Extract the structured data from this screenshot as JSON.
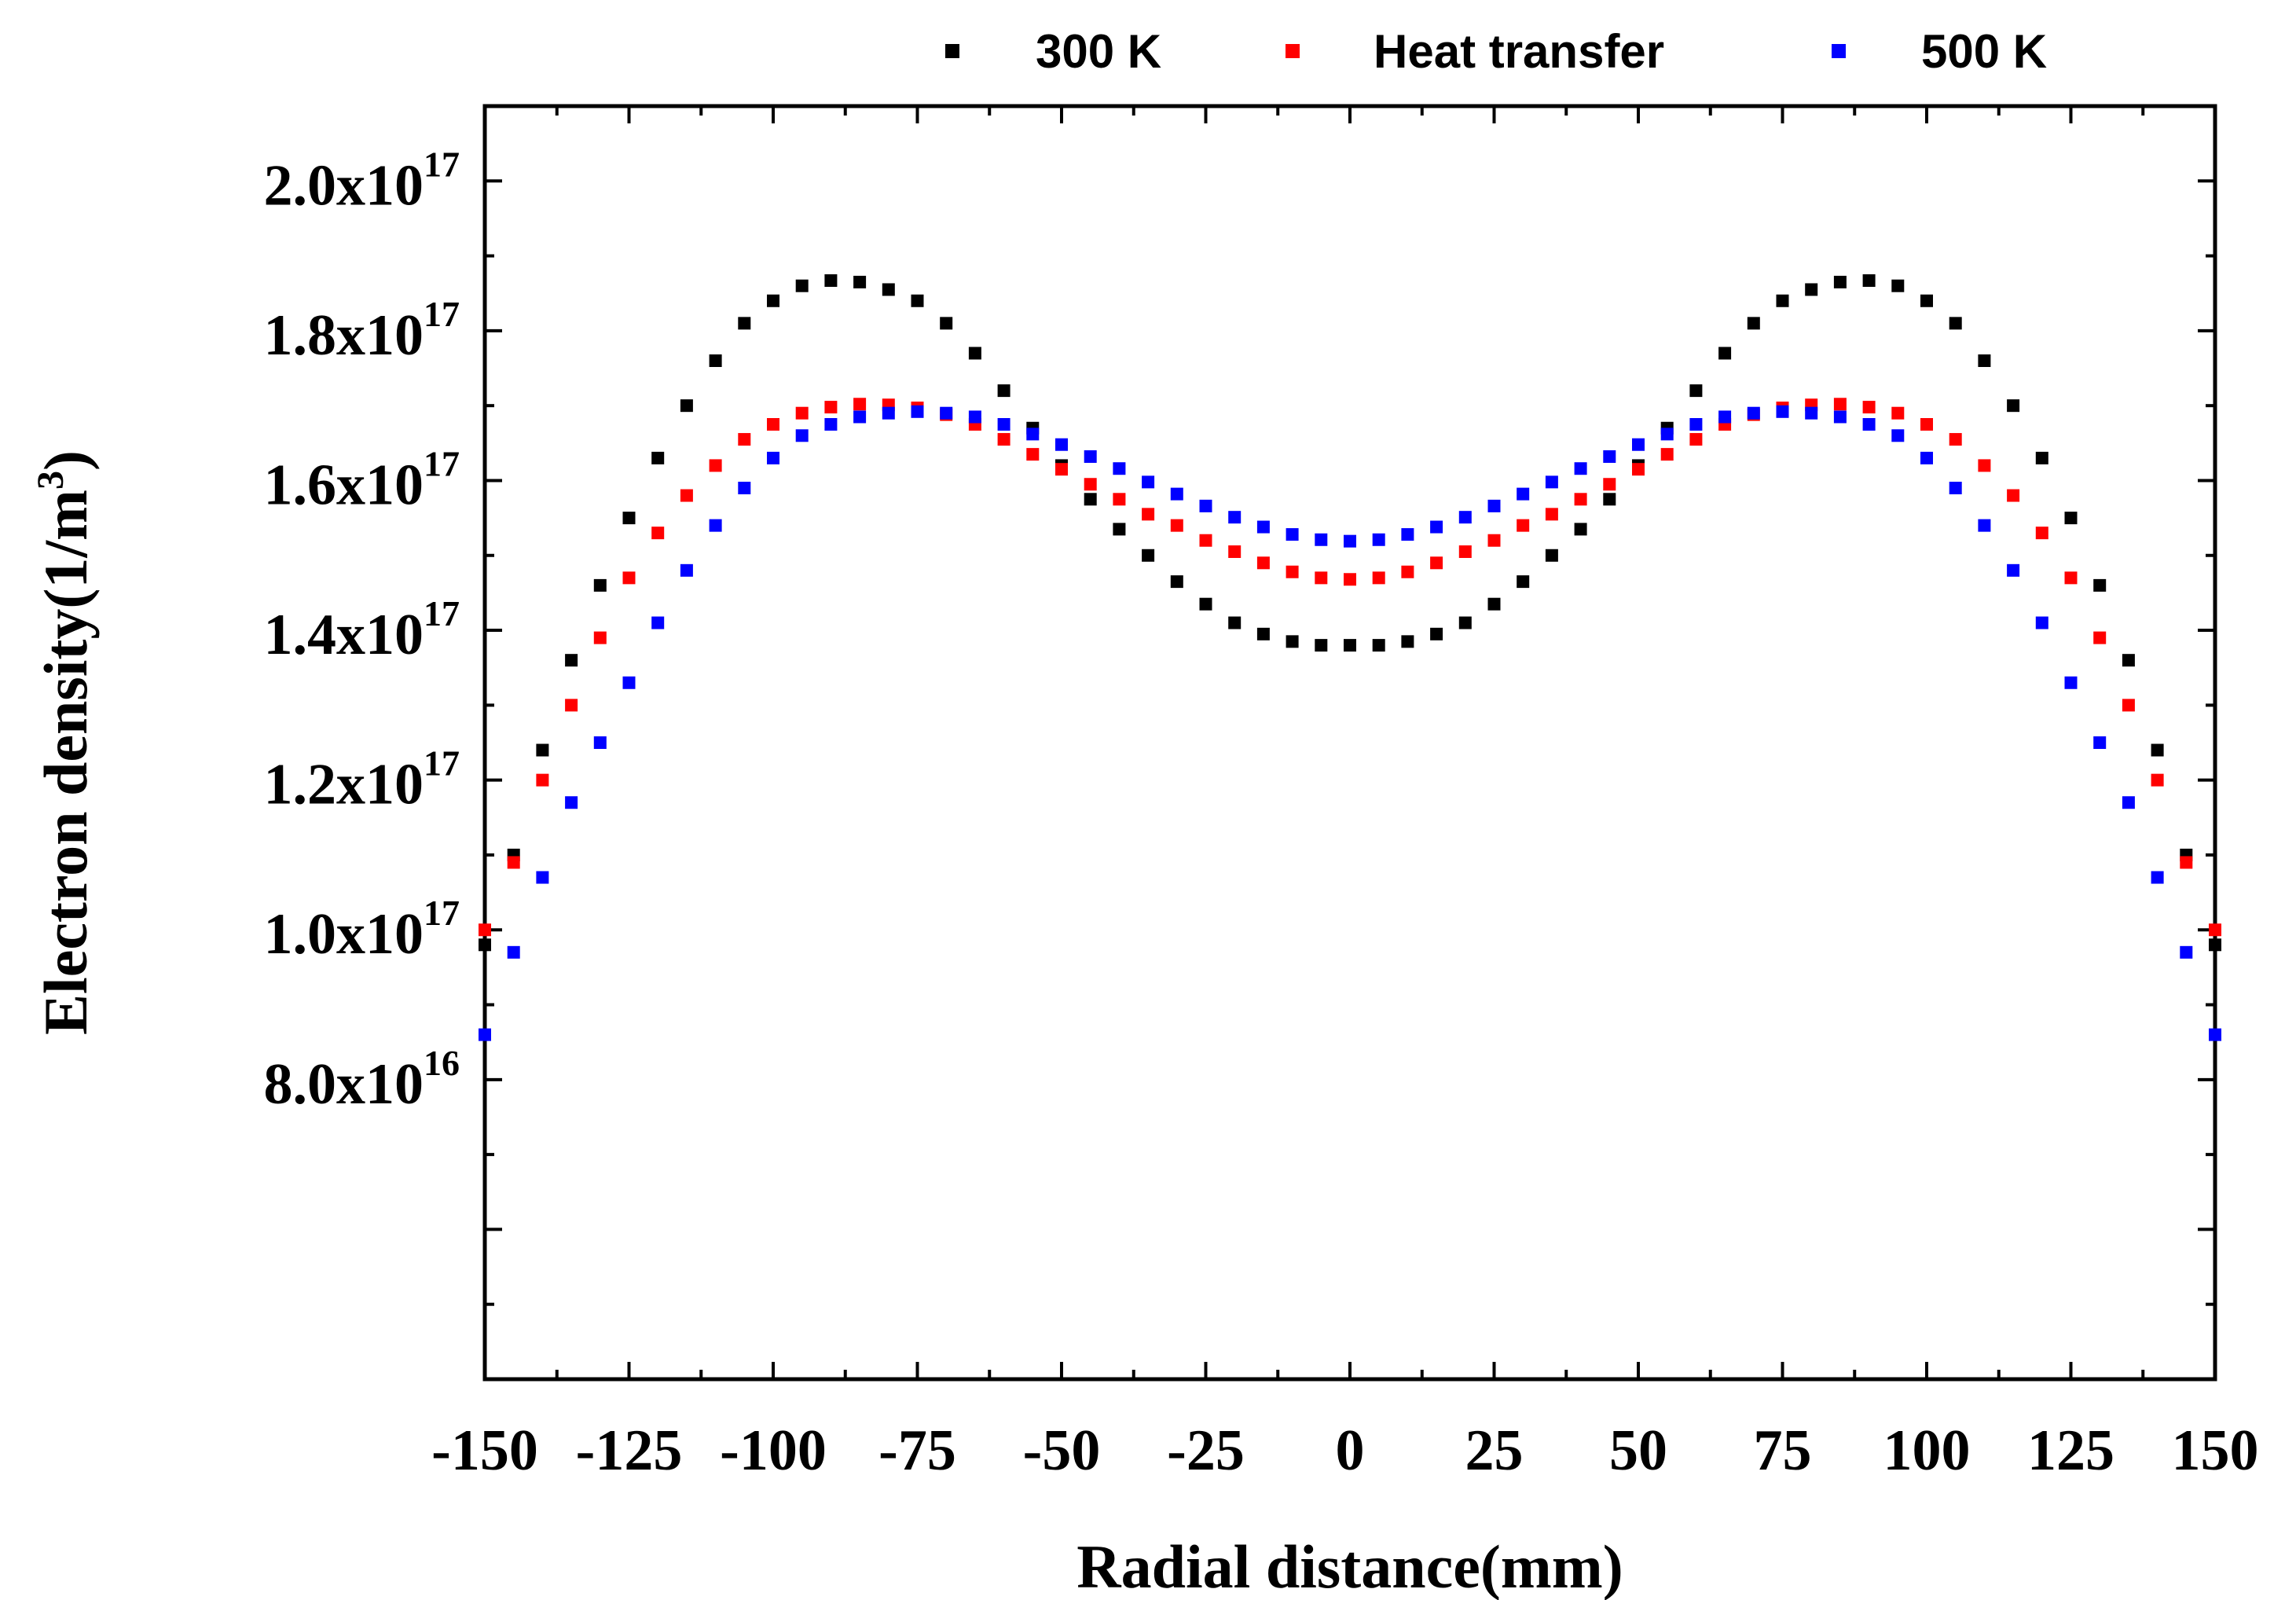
{
  "chart_data": {
    "type": "scatter",
    "title": "",
    "xlabel": "Radial distance(mm)",
    "ylabel": "Electron density(1/m",
    "ylabel_sup": "3",
    "ylabel_close": ")",
    "xlim": [
      -150,
      150
    ],
    "ylim": [
      4e+16,
      2.1e+17
    ],
    "xticks": [
      -150,
      -125,
      -100,
      -75,
      -50,
      -25,
      0,
      25,
      50,
      75,
      100,
      125,
      150
    ],
    "xtick_labels": [
      "-150",
      "-125",
      "-100",
      "-75",
      "-50",
      "-25",
      "0",
      "25",
      "50",
      "75",
      "100",
      "125",
      "150"
    ],
    "yticks": [
      {
        "value": 8e+16,
        "mantissa": "8.0x10",
        "exp": "16"
      },
      {
        "value": 1e+17,
        "mantissa": "1.0x10",
        "exp": "17"
      },
      {
        "value": 1.2e+17,
        "mantissa": "1.2x10",
        "exp": "17"
      },
      {
        "value": 1.4e+17,
        "mantissa": "1.4x10",
        "exp": "17"
      },
      {
        "value": 1.6e+17,
        "mantissa": "1.6x10",
        "exp": "17"
      },
      {
        "value": 1.8e+17,
        "mantissa": "1.8x10",
        "exp": "17"
      },
      {
        "value": 2e+17,
        "mantissa": "2.0x10",
        "exp": "17"
      }
    ],
    "grid": false,
    "legend_position": "top",
    "series": [
      {
        "name": "300 K",
        "color": "#000000",
        "x": [
          -150,
          -145,
          -140,
          -135,
          -130,
          -125,
          -120,
          -115,
          -110,
          -105,
          -100,
          -95,
          -90,
          -85,
          -80,
          -75,
          -70,
          -65,
          -60,
          -55,
          -50,
          -45,
          -40,
          -35,
          -30,
          -25,
          -20,
          -15,
          -10,
          -5,
          0,
          5,
          10,
          15,
          20,
          25,
          30,
          35,
          40,
          45,
          50,
          55,
          60,
          65,
          70,
          75,
          80,
          85,
          90,
          95,
          100,
          105,
          110,
          115,
          120,
          125,
          130,
          135,
          140,
          145,
          150
        ],
        "y": [
          9.8e+16,
          1.1e+17,
          1.24e+17,
          1.36e+17,
          1.46e+17,
          1.55e+17,
          1.63e+17,
          1.7e+17,
          1.76e+17,
          1.81e+17,
          1.84e+17,
          1.86e+17,
          1.867e+17,
          1.865e+17,
          1.855e+17,
          1.84e+17,
          1.81e+17,
          1.77e+17,
          1.72e+17,
          1.67e+17,
          1.62e+17,
          1.575e+17,
          1.535e+17,
          1.5e+17,
          1.465e+17,
          1.435e+17,
          1.41e+17,
          1.395e+17,
          1.385e+17,
          1.38e+17,
          1.38e+17,
          1.38e+17,
          1.385e+17,
          1.395e+17,
          1.41e+17,
          1.435e+17,
          1.465e+17,
          1.5e+17,
          1.535e+17,
          1.575e+17,
          1.62e+17,
          1.67e+17,
          1.72e+17,
          1.77e+17,
          1.81e+17,
          1.84e+17,
          1.855e+17,
          1.865e+17,
          1.867e+17,
          1.86e+17,
          1.84e+17,
          1.81e+17,
          1.76e+17,
          1.7e+17,
          1.63e+17,
          1.55e+17,
          1.46e+17,
          1.36e+17,
          1.24e+17,
          1.1e+17,
          9.8e+16
        ]
      },
      {
        "name": "Heat transfer",
        "color": "#ff0000",
        "x": [
          -150,
          -145,
          -140,
          -135,
          -130,
          -125,
          -120,
          -115,
          -110,
          -105,
          -100,
          -95,
          -90,
          -85,
          -80,
          -75,
          -70,
          -65,
          -60,
          -55,
          -50,
          -45,
          -40,
          -35,
          -30,
          -25,
          -20,
          -15,
          -10,
          -5,
          0,
          5,
          10,
          15,
          20,
          25,
          30,
          35,
          40,
          45,
          50,
          55,
          60,
          65,
          70,
          75,
          80,
          85,
          90,
          95,
          100,
          105,
          110,
          115,
          120,
          125,
          130,
          135,
          140,
          145,
          150
        ],
        "y": [
          1e+17,
          1.09e+17,
          1.2e+17,
          1.3e+17,
          1.39e+17,
          1.47e+17,
          1.53e+17,
          1.58e+17,
          1.62e+17,
          1.655e+17,
          1.675e+17,
          1.69e+17,
          1.698e+17,
          1.702e+17,
          1.701e+17,
          1.697e+17,
          1.688e+17,
          1.675e+17,
          1.655e+17,
          1.635e+17,
          1.615e+17,
          1.595e+17,
          1.575e+17,
          1.555e+17,
          1.54e+17,
          1.52e+17,
          1.505e+17,
          1.49e+17,
          1.478e+17,
          1.47e+17,
          1.468e+17,
          1.47e+17,
          1.478e+17,
          1.49e+17,
          1.505e+17,
          1.52e+17,
          1.54e+17,
          1.555e+17,
          1.575e+17,
          1.595e+17,
          1.615e+17,
          1.635e+17,
          1.655e+17,
          1.675e+17,
          1.688e+17,
          1.697e+17,
          1.701e+17,
          1.702e+17,
          1.698e+17,
          1.69e+17,
          1.675e+17,
          1.655e+17,
          1.62e+17,
          1.58e+17,
          1.53e+17,
          1.47e+17,
          1.39e+17,
          1.3e+17,
          1.2e+17,
          1.09e+17,
          1e+17
        ]
      },
      {
        "name": "500 K",
        "color": "#0000ff",
        "x": [
          -150,
          -145,
          -140,
          -135,
          -130,
          -125,
          -120,
          -115,
          -110,
          -105,
          -100,
          -95,
          -90,
          -85,
          -80,
          -75,
          -70,
          -65,
          -60,
          -55,
          -50,
          -45,
          -40,
          -35,
          -30,
          -25,
          -20,
          -15,
          -10,
          -5,
          0,
          5,
          10,
          15,
          20,
          25,
          30,
          35,
          40,
          45,
          50,
          55,
          60,
          65,
          70,
          75,
          80,
          85,
          90,
          95,
          100,
          105,
          110,
          115,
          120,
          125,
          130,
          135,
          140,
          145,
          150
        ],
        "y": [
          8.6e+16,
          9.7e+16,
          1.07e+17,
          1.17e+17,
          1.25e+17,
          1.33e+17,
          1.41e+17,
          1.48e+17,
          1.54e+17,
          1.59e+17,
          1.63e+17,
          1.66e+17,
          1.675e+17,
          1.685e+17,
          1.69e+17,
          1.692e+17,
          1.69e+17,
          1.685e+17,
          1.675e+17,
          1.662e+17,
          1.648e+17,
          1.632e+17,
          1.616e+17,
          1.598e+17,
          1.582e+17,
          1.566e+17,
          1.551e+17,
          1.538e+17,
          1.528e+17,
          1.521e+17,
          1.519e+17,
          1.521e+17,
          1.528e+17,
          1.538e+17,
          1.551e+17,
          1.566e+17,
          1.582e+17,
          1.598e+17,
          1.616e+17,
          1.632e+17,
          1.648e+17,
          1.662e+17,
          1.675e+17,
          1.685e+17,
          1.69e+17,
          1.692e+17,
          1.69e+17,
          1.685e+17,
          1.675e+17,
          1.66e+17,
          1.63e+17,
          1.59e+17,
          1.54e+17,
          1.48e+17,
          1.41e+17,
          1.33e+17,
          1.25e+17,
          1.17e+17,
          1.07e+17,
          9.7e+16,
          8.6e+16
        ]
      }
    ]
  }
}
